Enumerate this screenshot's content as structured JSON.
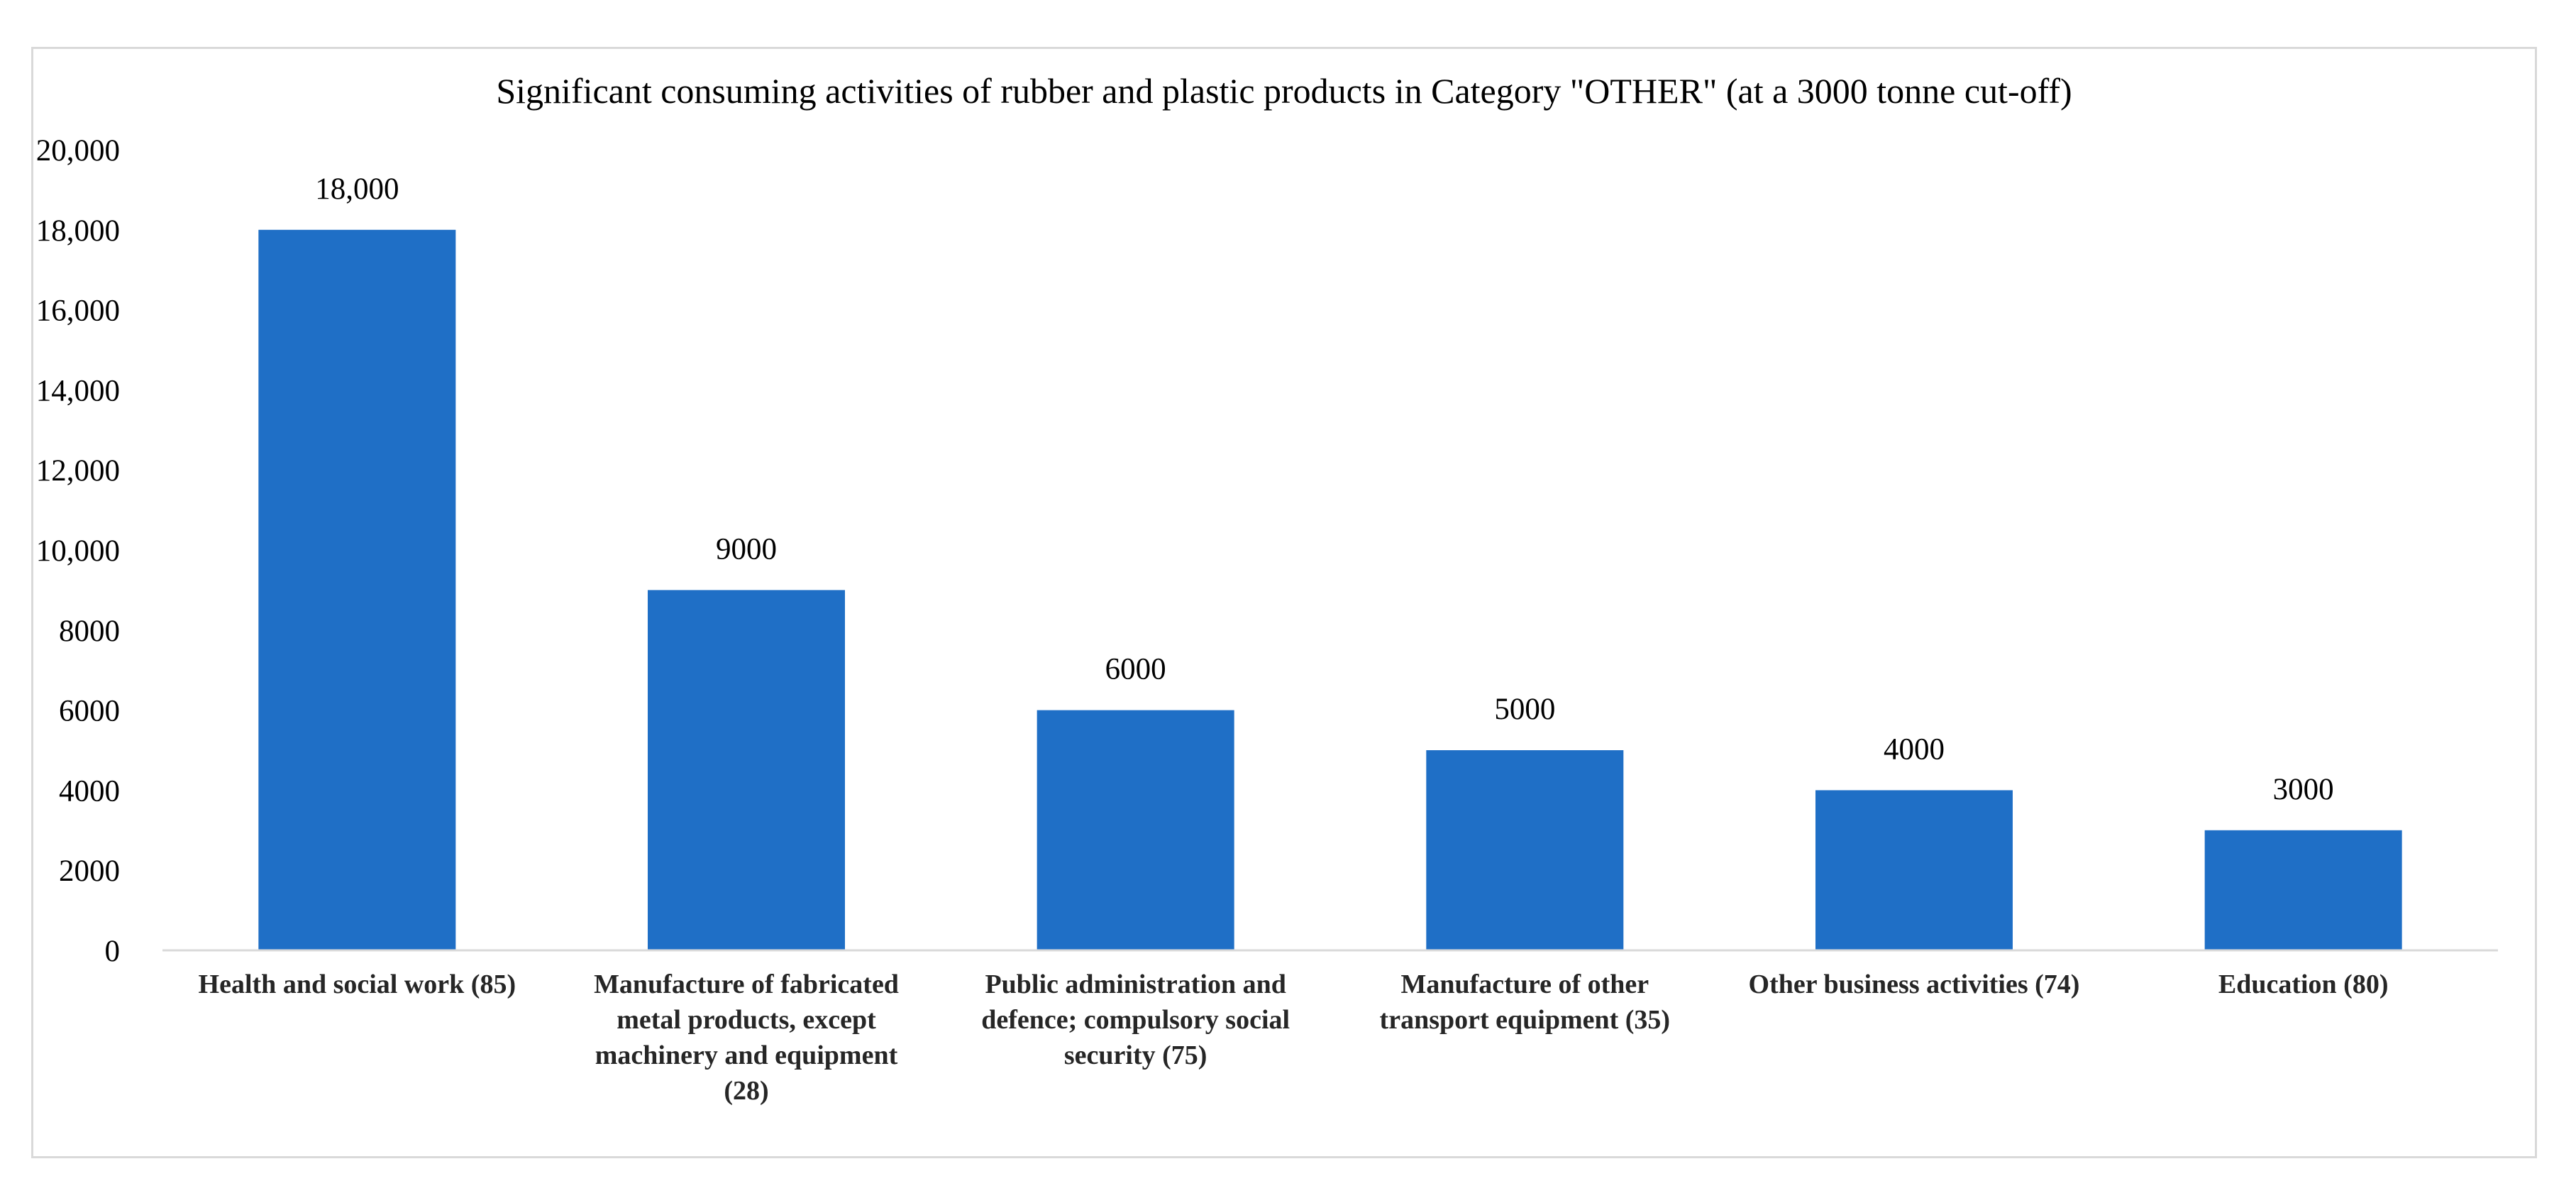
{
  "chart_data": {
    "type": "bar",
    "title": "Significant consuming activities of rubber and plastic products in Category \"OTHER\" (at a 3000 tonne cut-off)",
    "xlabel": "",
    "ylabel": "",
    "categories": [
      "Health and social work (85)",
      "Manufacture of fabricated metal products, except machinery and equipment (28)",
      "Public administration and defence; compulsory social security (75)",
      "Manufacture of other transport equipment (35)",
      "Other business activities (74)",
      "Education (80)"
    ],
    "category_lines": [
      [
        "Health and social work (85)"
      ],
      [
        "Manufacture of fabricated",
        "metal products, except",
        "machinery and equipment",
        "(28)"
      ],
      [
        "Public administration and",
        "defence; compulsory social",
        "security (75)"
      ],
      [
        "Manufacture of other",
        "transport equipment (35)"
      ],
      [
        "Other business activities (74)"
      ],
      [
        "Education (80)"
      ]
    ],
    "values": [
      18000,
      9000,
      6000,
      5000,
      4000,
      3000
    ],
    "data_labels": [
      "18,000",
      "9000",
      "6000",
      "5000",
      "4000",
      "3000"
    ],
    "ylim": [
      0,
      20000
    ],
    "yticks": [
      0,
      2000,
      4000,
      6000,
      8000,
      10000,
      12000,
      14000,
      16000,
      18000,
      20000
    ],
    "ytick_labels": [
      "0",
      "2000",
      "4000",
      "6000",
      "8000",
      "10,000",
      "12,000",
      "14,000",
      "16,000",
      "18,000",
      "20,000"
    ],
    "grid": false,
    "legend": "none",
    "bar_color": "#1f6fc6"
  }
}
